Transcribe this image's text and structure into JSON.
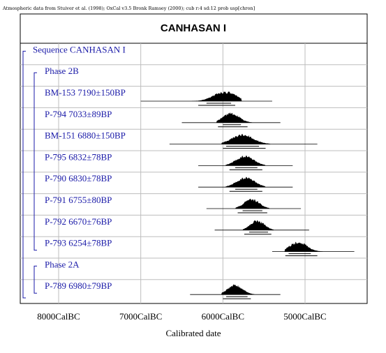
{
  "credit": "Atmospheric data from Stuiver et al. (1998); OxCal v3.5 Bronk Ramsey (2000); cub r:4 sd:12 prob usp[chron]",
  "chart_data": {
    "type": "oxcal-multiplot",
    "title": "CANHASAN I",
    "xlabel": "Calibrated date",
    "x_unit": "CalBC",
    "xlim": [
      8500,
      4400
    ],
    "grid": true,
    "x_ticks": [
      {
        "value": 8000,
        "label": "8000CalBC"
      },
      {
        "value": 7000,
        "label": "7000CalBC"
      },
      {
        "value": 6000,
        "label": "6000CalBC"
      },
      {
        "value": 5000,
        "label": "5000CalBC"
      }
    ],
    "sequence": {
      "label": "Sequence CANHASAN I"
    },
    "phases": [
      {
        "label": "Phase 2B",
        "dates": [
          {
            "label": "BM-153  7190±150BP",
            "range": [
              7000,
              5400
            ],
            "posterior": [
              6380,
              5770
            ],
            "peak": 5980,
            "sigma1": [
              6200,
              5900
            ],
            "sigma2": [
              6300,
              5850
            ]
          },
          {
            "label": "P-794  7033±89BP",
            "range": [
              6500,
              5300
            ],
            "posterior": [
              6080,
              5640
            ],
            "peak": 5900,
            "sigma1": [
              6000,
              5780
            ],
            "sigma2": [
              6060,
              5700
            ]
          },
          {
            "label": "BM-151  6880±150BP",
            "range": [
              6650,
              4850
            ],
            "posterior": [
              6020,
              5420
            ],
            "peak": 5760,
            "sigma1": [
              5960,
              5560
            ],
            "sigma2": [
              6000,
              5480
            ]
          },
          {
            "label": "P-795  6832±78BP",
            "range": [
              6300,
              5150
            ],
            "posterior": [
              5970,
              5480
            ],
            "peak": 5730,
            "sigma1": [
              5850,
              5580
            ],
            "sigma2": [
              5920,
              5520
            ]
          },
          {
            "label": "P-790  6830±78BP",
            "range": [
              6300,
              5150
            ],
            "posterior": [
              5970,
              5480
            ],
            "peak": 5720,
            "sigma1": [
              5850,
              5580
            ],
            "sigma2": [
              5920,
              5520
            ]
          },
          {
            "label": "P-791  6755±80BP",
            "range": [
              6200,
              5050
            ],
            "posterior": [
              5850,
              5430
            ],
            "peak": 5650,
            "sigma1": [
              5760,
              5520
            ],
            "sigma2": [
              5820,
              5460
            ]
          },
          {
            "label": "P-792  6670±76BP",
            "range": [
              6100,
              4950
            ],
            "posterior": [
              5760,
              5380
            ],
            "peak": 5580,
            "sigma1": [
              5680,
              5450
            ],
            "sigma2": [
              5740,
              5410
            ]
          },
          {
            "label": "P-793  6254±78BP",
            "range": [
              5400,
              4400
            ],
            "posterior": [
              5250,
              4780
            ],
            "peak": 5080,
            "sigma1": [
              5200,
              4930
            ],
            "sigma2": [
              5240,
              4850
            ]
          }
        ]
      },
      {
        "label": "Phase 2A",
        "dates": [
          {
            "label": "P-789  6980±79BP",
            "range": [
              6400,
              5300
            ],
            "posterior": [
              6020,
              5610
            ],
            "peak": 5850,
            "sigma1": [
              5960,
              5700
            ],
            "sigma2": [
              6000,
              5660
            ]
          }
        ]
      }
    ]
  }
}
